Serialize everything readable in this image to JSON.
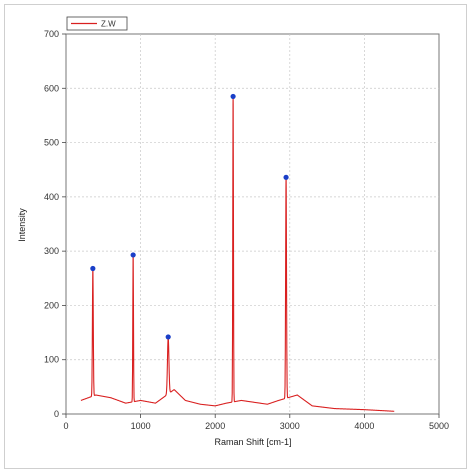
{
  "chart_data": {
    "type": "line",
    "title": "",
    "xlabel": "Raman Shift [cm-1]",
    "ylabel": "Intensity",
    "xlim": [
      0,
      5000
    ],
    "ylim": [
      0,
      700
    ],
    "x_ticks": [
      0,
      1000,
      2000,
      3000,
      4000,
      5000
    ],
    "y_ticks": [
      0,
      100,
      200,
      300,
      400,
      500,
      600,
      700
    ],
    "grid": true,
    "legend_position": "top-left",
    "series": [
      {
        "name": "Z.W",
        "color": "#d92020",
        "baseline": [
          [
            200,
            25
          ],
          [
            400,
            35
          ],
          [
            600,
            30
          ],
          [
            800,
            20
          ],
          [
            1000,
            25
          ],
          [
            1200,
            20
          ],
          [
            1300,
            30
          ],
          [
            1450,
            45
          ],
          [
            1600,
            25
          ],
          [
            1800,
            18
          ],
          [
            2000,
            15
          ],
          [
            2150,
            20
          ],
          [
            2350,
            25
          ],
          [
            2500,
            22
          ],
          [
            2700,
            18
          ],
          [
            2850,
            25
          ],
          [
            3100,
            35
          ],
          [
            3300,
            15
          ],
          [
            3600,
            10
          ],
          [
            4000,
            8
          ],
          [
            4400,
            5
          ]
        ],
        "peaks": [
          {
            "x": 360,
            "y": 268,
            "width": 18
          },
          {
            "x": 900,
            "y": 293,
            "width": 14
          },
          {
            "x": 1370,
            "y": 142,
            "width": 30
          },
          {
            "x": 2240,
            "y": 585,
            "width": 14
          },
          {
            "x": 2950,
            "y": 436,
            "width": 18
          }
        ]
      }
    ],
    "marked_peaks": [
      {
        "x": 360,
        "y": 268
      },
      {
        "x": 900,
        "y": 293
      },
      {
        "x": 1370,
        "y": 142
      },
      {
        "x": 2240,
        "y": 585
      },
      {
        "x": 2950,
        "y": 436
      }
    ],
    "marker_color": "#1a3fc8"
  }
}
